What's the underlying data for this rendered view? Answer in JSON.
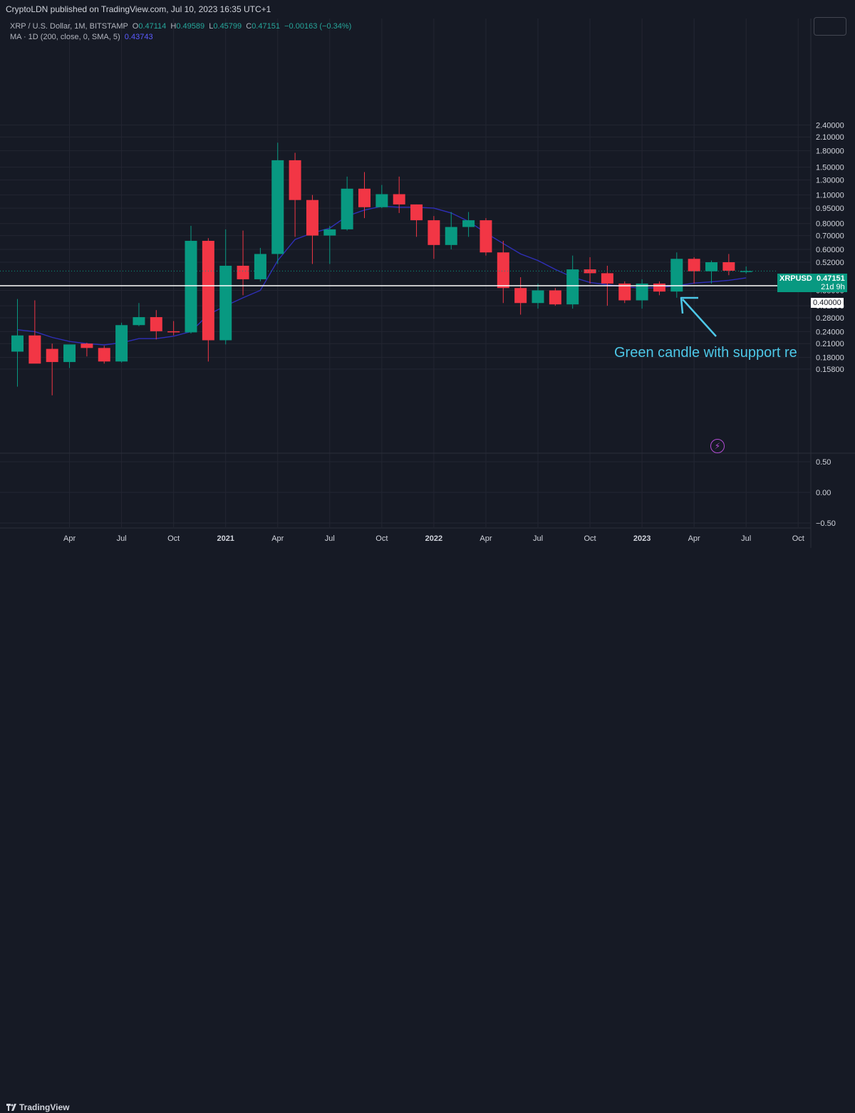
{
  "header": {
    "published": "CryptoLDN published on TradingView.com, Jul 10, 2023 16:35 UTC+1"
  },
  "legend": {
    "symbol": "XRP / U.S. Dollar, 1M, BITSTAMP",
    "ohlc": {
      "o_label": "O",
      "o": "0.47114",
      "h_label": "H",
      "h": "0.49589",
      "l_label": "L",
      "l": "0.45799",
      "c_label": "C",
      "c": "0.47151",
      "change": "−0.00163 (−0.34%)"
    },
    "ma_label": "MA · 1D (200, close, 0, SMA, 5)",
    "ma_value": "0.43743"
  },
  "price_tag": {
    "symbol": "XRPUSD",
    "price": "0.47151",
    "countdown": "21d 9h"
  },
  "level_tag": "0.40000",
  "annotation": "Green candle with support re",
  "footer": {
    "brand": "TradingView"
  },
  "colors": {
    "up": "#089981",
    "down": "#f23645",
    "ma": "#2f2fb8",
    "annotation": "#4dc8e8",
    "level": "#ffffff",
    "background": "#161a25"
  },
  "chart_data": {
    "type": "candlestick",
    "title": "XRP / U.S. Dollar, 1M, BITSTAMP",
    "y_scale": "log",
    "y_ticks": [
      "0.15800",
      "0.18000",
      "0.21000",
      "0.24000",
      "0.28000",
      "0.32000",
      "0.38000",
      "0.52000",
      "0.60000",
      "0.70000",
      "0.80000",
      "0.95000",
      "1.10000",
      "1.30000",
      "1.50000",
      "1.80000",
      "2.10000",
      "2.40000"
    ],
    "x_ticks": [
      "Apr",
      "Jul",
      "Oct",
      "2021",
      "Apr",
      "Jul",
      "Oct",
      "2022",
      "Apr",
      "Jul",
      "Oct",
      "2023",
      "Apr",
      "Jul",
      "Oct"
    ],
    "candles": [
      {
        "date": "2020-01",
        "o": 0.192,
        "h": 0.345,
        "l": 0.13,
        "c": 0.23
      },
      {
        "date": "2020-02",
        "o": 0.23,
        "h": 0.34,
        "l": 0.17,
        "c": 0.168
      },
      {
        "date": "2020-03",
        "o": 0.198,
        "h": 0.21,
        "l": 0.118,
        "c": 0.171
      },
      {
        "date": "2020-04",
        "o": 0.171,
        "h": 0.205,
        "l": 0.16,
        "c": 0.208
      },
      {
        "date": "2020-05",
        "o": 0.21,
        "h": 0.212,
        "l": 0.182,
        "c": 0.2
      },
      {
        "date": "2020-06",
        "o": 0.2,
        "h": 0.205,
        "l": 0.168,
        "c": 0.172
      },
      {
        "date": "2020-07",
        "o": 0.172,
        "h": 0.265,
        "l": 0.17,
        "c": 0.258
      },
      {
        "date": "2020-08",
        "o": 0.258,
        "h": 0.33,
        "l": 0.255,
        "c": 0.282
      },
      {
        "date": "2020-09",
        "o": 0.282,
        "h": 0.305,
        "l": 0.22,
        "c": 0.241
      },
      {
        "date": "2020-10",
        "o": 0.241,
        "h": 0.27,
        "l": 0.23,
        "c": 0.238
      },
      {
        "date": "2020-11",
        "o": 0.238,
        "h": 0.78,
        "l": 0.235,
        "c": 0.66
      },
      {
        "date": "2020-12",
        "o": 0.66,
        "h": 0.68,
        "l": 0.172,
        "c": 0.218
      },
      {
        "date": "2021-01",
        "o": 0.218,
        "h": 0.75,
        "l": 0.208,
        "c": 0.5
      },
      {
        "date": "2021-02",
        "o": 0.5,
        "h": 0.74,
        "l": 0.36,
        "c": 0.43
      },
      {
        "date": "2021-03",
        "o": 0.43,
        "h": 0.61,
        "l": 0.42,
        "c": 0.57
      },
      {
        "date": "2021-04",
        "o": 0.57,
        "h": 1.97,
        "l": 0.51,
        "c": 1.62
      },
      {
        "date": "2021-05",
        "o": 1.62,
        "h": 1.76,
        "l": 0.69,
        "c": 1.04
      },
      {
        "date": "2021-06",
        "o": 1.04,
        "h": 1.1,
        "l": 0.51,
        "c": 0.7
      },
      {
        "date": "2021-07",
        "o": 0.7,
        "h": 0.78,
        "l": 0.51,
        "c": 0.75
      },
      {
        "date": "2021-08",
        "o": 0.75,
        "h": 1.35,
        "l": 0.74,
        "c": 1.18
      },
      {
        "date": "2021-09",
        "o": 1.18,
        "h": 1.42,
        "l": 0.85,
        "c": 0.96
      },
      {
        "date": "2021-10",
        "o": 0.96,
        "h": 1.23,
        "l": 0.95,
        "c": 1.11
      },
      {
        "date": "2021-11",
        "o": 1.11,
        "h": 1.35,
        "l": 0.9,
        "c": 0.99
      },
      {
        "date": "2021-12",
        "o": 0.99,
        "h": 0.99,
        "l": 0.69,
        "c": 0.83
      },
      {
        "date": "2022-01",
        "o": 0.83,
        "h": 0.87,
        "l": 0.54,
        "c": 0.63
      },
      {
        "date": "2022-02",
        "o": 0.63,
        "h": 0.91,
        "l": 0.6,
        "c": 0.77
      },
      {
        "date": "2022-03",
        "o": 0.77,
        "h": 0.91,
        "l": 0.69,
        "c": 0.83
      },
      {
        "date": "2022-04",
        "o": 0.83,
        "h": 0.85,
        "l": 0.56,
        "c": 0.58
      },
      {
        "date": "2022-05",
        "o": 0.58,
        "h": 0.66,
        "l": 0.33,
        "c": 0.39
      },
      {
        "date": "2022-06",
        "o": 0.39,
        "h": 0.44,
        "l": 0.29,
        "c": 0.33
      },
      {
        "date": "2022-07",
        "o": 0.33,
        "h": 0.41,
        "l": 0.31,
        "c": 0.38
      },
      {
        "date": "2022-08",
        "o": 0.38,
        "h": 0.39,
        "l": 0.32,
        "c": 0.325
      },
      {
        "date": "2022-09",
        "o": 0.325,
        "h": 0.56,
        "l": 0.31,
        "c": 0.48
      },
      {
        "date": "2022-10",
        "o": 0.48,
        "h": 0.55,
        "l": 0.41,
        "c": 0.46
      },
      {
        "date": "2022-11",
        "o": 0.46,
        "h": 0.5,
        "l": 0.32,
        "c": 0.41
      },
      {
        "date": "2022-12",
        "o": 0.41,
        "h": 0.42,
        "l": 0.33,
        "c": 0.34
      },
      {
        "date": "2023-01",
        "o": 0.34,
        "h": 0.43,
        "l": 0.31,
        "c": 0.41
      },
      {
        "date": "2023-02",
        "o": 0.41,
        "h": 0.42,
        "l": 0.36,
        "c": 0.375
      },
      {
        "date": "2023-03",
        "o": 0.375,
        "h": 0.58,
        "l": 0.35,
        "c": 0.54
      },
      {
        "date": "2023-04",
        "o": 0.54,
        "h": 0.55,
        "l": 0.41,
        "c": 0.47
      },
      {
        "date": "2023-05",
        "o": 0.47,
        "h": 0.53,
        "l": 0.41,
        "c": 0.52
      },
      {
        "date": "2023-06",
        "o": 0.52,
        "h": 0.57,
        "l": 0.45,
        "c": 0.473
      },
      {
        "date": "2023-07",
        "o": 0.471,
        "h": 0.496,
        "l": 0.458,
        "c": 0.4715
      }
    ],
    "ma_line": [
      {
        "date": "2020-01",
        "v": 0.245
      },
      {
        "date": "2020-02",
        "v": 0.24
      },
      {
        "date": "2020-03",
        "v": 0.225
      },
      {
        "date": "2020-04",
        "v": 0.215
      },
      {
        "date": "2020-05",
        "v": 0.21
      },
      {
        "date": "2020-06",
        "v": 0.207
      },
      {
        "date": "2020-07",
        "v": 0.212
      },
      {
        "date": "2020-08",
        "v": 0.222
      },
      {
        "date": "2020-09",
        "v": 0.222
      },
      {
        "date": "2020-10",
        "v": 0.228
      },
      {
        "date": "2020-11",
        "v": 0.24
      },
      {
        "date": "2020-12",
        "v": 0.29
      },
      {
        "date": "2021-01",
        "v": 0.32
      },
      {
        "date": "2021-02",
        "v": 0.35
      },
      {
        "date": "2021-03",
        "v": 0.38
      },
      {
        "date": "2021-04",
        "v": 0.53
      },
      {
        "date": "2021-05",
        "v": 0.67
      },
      {
        "date": "2021-06",
        "v": 0.72
      },
      {
        "date": "2021-07",
        "v": 0.76
      },
      {
        "date": "2021-08",
        "v": 0.87
      },
      {
        "date": "2021-09",
        "v": 0.93
      },
      {
        "date": "2021-10",
        "v": 0.97
      },
      {
        "date": "2021-11",
        "v": 0.96
      },
      {
        "date": "2021-12",
        "v": 0.96
      },
      {
        "date": "2022-01",
        "v": 0.95
      },
      {
        "date": "2022-02",
        "v": 0.9
      },
      {
        "date": "2022-03",
        "v": 0.82
      },
      {
        "date": "2022-04",
        "v": 0.72
      },
      {
        "date": "2022-05",
        "v": 0.64
      },
      {
        "date": "2022-06",
        "v": 0.57
      },
      {
        "date": "2022-07",
        "v": 0.53
      },
      {
        "date": "2022-08",
        "v": 0.48
      },
      {
        "date": "2022-09",
        "v": 0.44
      },
      {
        "date": "2022-10",
        "v": 0.415
      },
      {
        "date": "2022-11",
        "v": 0.405
      },
      {
        "date": "2022-12",
        "v": 0.395
      },
      {
        "date": "2023-01",
        "v": 0.39
      },
      {
        "date": "2023-02",
        "v": 0.392
      },
      {
        "date": "2023-03",
        "v": 0.4
      },
      {
        "date": "2023-04",
        "v": 0.412
      },
      {
        "date": "2023-05",
        "v": 0.418
      },
      {
        "date": "2023-06",
        "v": 0.425
      },
      {
        "date": "2023-07",
        "v": 0.437
      }
    ],
    "current_price": 0.47151,
    "horizontal_level": 0.4,
    "lower_pane": {
      "y_ticks": [
        "0.50",
        "0.00",
        "−0.50"
      ]
    }
  }
}
